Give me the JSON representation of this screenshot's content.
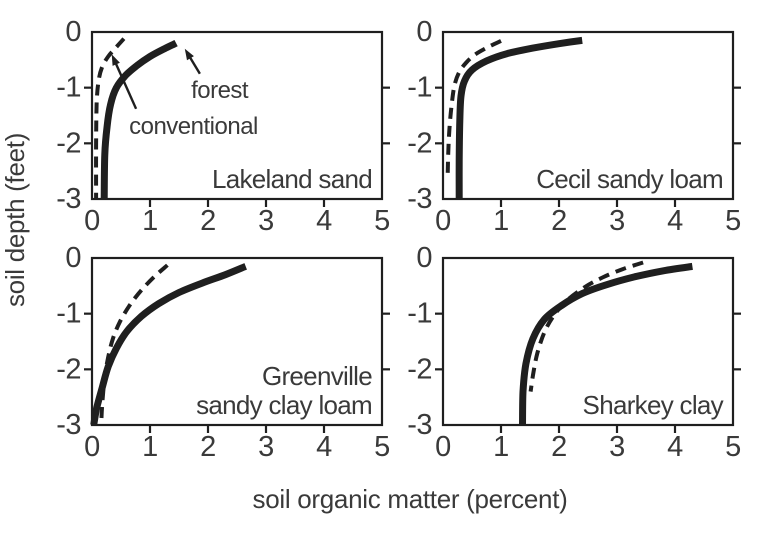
{
  "figure": {
    "x_axis_title": "soil organic matter (percent)",
    "y_axis_title": "soil depth (feet)",
    "colors": {
      "line": "#1f1f1f",
      "text": "#3a3a3a",
      "background": "#ffffff"
    }
  },
  "legend": {
    "solid_series": "forest",
    "dashed_series": "conventional"
  },
  "chart_data": [
    {
      "id": "lakeland-sand",
      "type": "line",
      "title": "Lakeland sand",
      "title_lines": [
        "Lakeland sand"
      ],
      "xlabel": "soil organic matter (percent)",
      "ylabel": "soil depth (feet)",
      "xlim": [
        0,
        5
      ],
      "ylim": [
        -3,
        0
      ],
      "x_ticks": [
        0,
        1,
        2,
        3,
        4,
        5
      ],
      "y_ticks": [
        0,
        -1,
        -2,
        -3
      ],
      "series": [
        {
          "name": "forest",
          "style": "solid",
          "points": [
            [
              1.45,
              -0.2
            ],
            [
              1.25,
              -0.3
            ],
            [
              1.0,
              -0.44
            ],
            [
              0.78,
              -0.6
            ],
            [
              0.58,
              -0.78
            ],
            [
              0.42,
              -1.0
            ],
            [
              0.32,
              -1.3
            ],
            [
              0.26,
              -1.7
            ],
            [
              0.22,
              -2.2
            ],
            [
              0.21,
              -3.0
            ]
          ]
        },
        {
          "name": "conventional",
          "style": "dashed",
          "points": [
            [
              0.55,
              -0.12
            ],
            [
              0.42,
              -0.27
            ],
            [
              0.28,
              -0.44
            ],
            [
              0.17,
              -0.64
            ],
            [
              0.11,
              -0.9
            ],
            [
              0.08,
              -1.3
            ],
            [
              0.07,
              -2.0
            ],
            [
              0.07,
              -3.0
            ]
          ]
        }
      ],
      "annotations": [
        {
          "text": "forest",
          "x": 2.2,
          "y": -1.05,
          "arrow_from": [
            1.86,
            -0.75
          ],
          "arrow_to": [
            1.6,
            -0.3
          ]
        },
        {
          "text": "conventional",
          "x": 1.75,
          "y": -1.7,
          "arrow_from": [
            0.76,
            -1.38
          ],
          "arrow_to": [
            0.34,
            -0.4
          ]
        }
      ]
    },
    {
      "id": "cecil-sandy-loam",
      "type": "line",
      "title": "Cecil sandy loam",
      "title_lines": [
        "Cecil sandy loam"
      ],
      "xlim": [
        0,
        5
      ],
      "ylim": [
        -3,
        0
      ],
      "x_ticks": [
        0,
        1,
        2,
        3,
        4,
        5
      ],
      "y_ticks": [
        0,
        -1,
        -2,
        -3
      ],
      "series": [
        {
          "name": "forest",
          "style": "solid",
          "points": [
            [
              2.4,
              -0.15
            ],
            [
              2.0,
              -0.21
            ],
            [
              1.55,
              -0.29
            ],
            [
              1.1,
              -0.39
            ],
            [
              0.75,
              -0.52
            ],
            [
              0.5,
              -0.68
            ],
            [
              0.37,
              -0.88
            ],
            [
              0.31,
              -1.15
            ],
            [
              0.29,
              -1.6
            ],
            [
              0.28,
              -2.3
            ],
            [
              0.28,
              -3.0
            ]
          ]
        },
        {
          "name": "conventional",
          "style": "dashed",
          "points": [
            [
              1.0,
              -0.16
            ],
            [
              0.78,
              -0.27
            ],
            [
              0.56,
              -0.4
            ],
            [
              0.4,
              -0.55
            ],
            [
              0.28,
              -0.72
            ],
            [
              0.2,
              -0.95
            ],
            [
              0.15,
              -1.3
            ],
            [
              0.11,
              -1.75
            ],
            [
              0.09,
              -2.2
            ],
            [
              0.08,
              -2.65
            ]
          ]
        }
      ],
      "annotations": []
    },
    {
      "id": "greenville-sandy-clay-loam",
      "type": "line",
      "title": "Greenville sandy clay loam",
      "title_lines": [
        "Greenville",
        "sandy clay loam"
      ],
      "xlim": [
        0,
        5
      ],
      "ylim": [
        -3,
        0
      ],
      "x_ticks": [
        0,
        1,
        2,
        3,
        4,
        5
      ],
      "y_ticks": [
        0,
        -1,
        -2,
        -3
      ],
      "series": [
        {
          "name": "forest",
          "style": "solid",
          "points": [
            [
              2.65,
              -0.15
            ],
            [
              2.3,
              -0.3
            ],
            [
              1.9,
              -0.45
            ],
            [
              1.5,
              -0.62
            ],
            [
              1.15,
              -0.82
            ],
            [
              0.85,
              -1.05
            ],
            [
              0.6,
              -1.32
            ],
            [
              0.42,
              -1.62
            ],
            [
              0.28,
              -1.95
            ],
            [
              0.17,
              -2.35
            ],
            [
              0.08,
              -2.7
            ],
            [
              0.03,
              -3.0
            ]
          ]
        },
        {
          "name": "conventional",
          "style": "dashed",
          "points": [
            [
              1.3,
              -0.13
            ],
            [
              1.08,
              -0.33
            ],
            [
              0.85,
              -0.58
            ],
            [
              0.65,
              -0.85
            ],
            [
              0.48,
              -1.15
            ],
            [
              0.36,
              -1.45
            ],
            [
              0.28,
              -1.78
            ],
            [
              0.22,
              -2.12
            ],
            [
              0.19,
              -2.45
            ],
            [
              0.17,
              -2.72
            ],
            [
              0.16,
              -2.95
            ]
          ]
        }
      ],
      "annotations": []
    },
    {
      "id": "sharkey-clay",
      "type": "line",
      "title": "Sharkey clay",
      "title_lines": [
        "Sharkey clay"
      ],
      "xlim": [
        0,
        5
      ],
      "ylim": [
        -3,
        0
      ],
      "x_ticks": [
        0,
        1,
        2,
        3,
        4,
        5
      ],
      "y_ticks": [
        0,
        -1,
        -2,
        -3
      ],
      "series": [
        {
          "name": "forest",
          "style": "solid",
          "points": [
            [
              4.3,
              -0.15
            ],
            [
              3.8,
              -0.23
            ],
            [
              3.3,
              -0.34
            ],
            [
              2.85,
              -0.47
            ],
            [
              2.4,
              -0.64
            ],
            [
              2.05,
              -0.85
            ],
            [
              1.75,
              -1.1
            ],
            [
              1.55,
              -1.45
            ],
            [
              1.43,
              -1.9
            ],
            [
              1.38,
              -2.4
            ],
            [
              1.37,
              -3.0
            ]
          ]
        },
        {
          "name": "conventional",
          "style": "dashed",
          "points": [
            [
              3.45,
              -0.08
            ],
            [
              3.1,
              -0.2
            ],
            [
              2.75,
              -0.35
            ],
            [
              2.45,
              -0.52
            ],
            [
              2.15,
              -0.75
            ],
            [
              1.92,
              -1.02
            ],
            [
              1.75,
              -1.33
            ],
            [
              1.63,
              -1.7
            ],
            [
              1.56,
              -2.05
            ],
            [
              1.51,
              -2.4
            ]
          ]
        }
      ],
      "annotations": []
    }
  ]
}
